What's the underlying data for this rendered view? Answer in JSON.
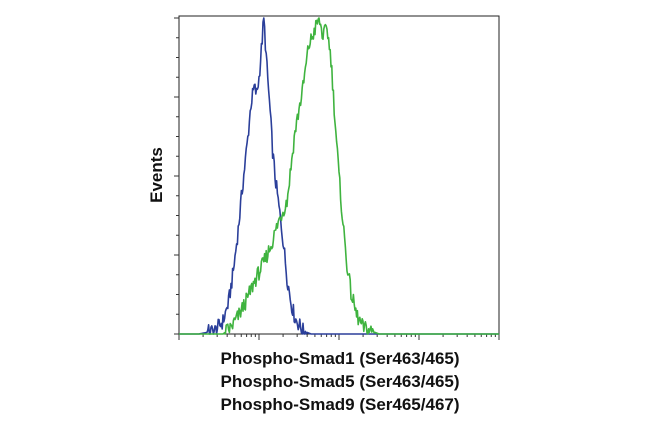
{
  "chart_data": {
    "type": "line",
    "title": "",
    "ylabel": "Events",
    "xlabel_lines": [
      "Phospho-Smad1 (Ser463/465)",
      "Phospho-Smad5 (Ser463/465)",
      "Phospho-Smad9 (Ser465/467)"
    ],
    "x_scale": "log",
    "xlim": [
      0,
      4
    ],
    "ylim": [
      0,
      100
    ],
    "grid": false,
    "legend": "none",
    "series": [
      {
        "color": "#2b3f9a",
        "x": [
          0.0,
          0.25,
          0.45,
          0.55,
          0.62,
          0.68,
          0.74,
          0.8,
          0.86,
          0.9,
          0.94,
          0.97,
          1.0,
          1.03,
          1.06,
          1.1,
          1.14,
          1.17,
          1.2,
          1.25,
          1.3,
          1.35,
          1.4,
          1.45,
          1.55,
          1.65,
          2.0,
          4.0
        ],
        "y": [
          0,
          0,
          1,
          4,
          10,
          20,
          33,
          48,
          62,
          73,
          78,
          76,
          81,
          90,
          100,
          84,
          70,
          58,
          50,
          40,
          30,
          18,
          10,
          5,
          1,
          0,
          0,
          0
        ]
      },
      {
        "color": "#3fb33f",
        "x": [
          0.0,
          0.55,
          0.65,
          0.75,
          0.85,
          0.95,
          1.05,
          1.15,
          1.25,
          1.35,
          1.45,
          1.55,
          1.62,
          1.68,
          1.75,
          1.8,
          1.85,
          1.9,
          1.95,
          2.0,
          2.05,
          2.1,
          2.15,
          2.22,
          2.3,
          2.4,
          2.5,
          2.6,
          3.0,
          4.0
        ],
        "y": [
          0,
          0,
          2,
          6,
          11,
          17,
          22,
          28,
          36,
          42,
          64,
          78,
          91,
          95,
          100,
          94,
          97,
          87,
          68,
          50,
          35,
          22,
          13,
          6,
          2,
          1,
          0,
          0,
          0,
          0
        ]
      }
    ]
  }
}
